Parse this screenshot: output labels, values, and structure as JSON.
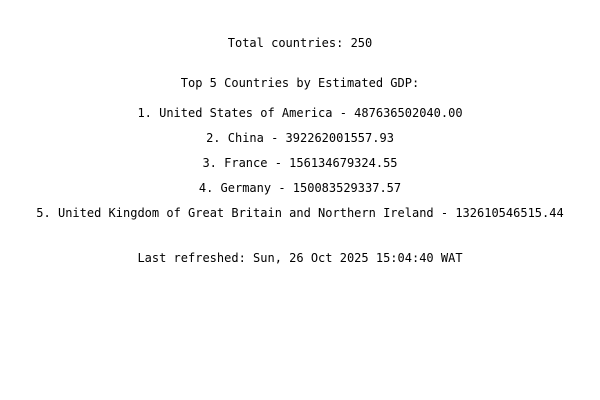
{
  "summary": {
    "total_countries": "Total countries: 250"
  },
  "ranking": {
    "heading": "Top 5 Countries by Estimated GDP:",
    "items": [
      {
        "text": "1. United States of America - 487636502040.00"
      },
      {
        "text": "2. China - 392262001557.93"
      },
      {
        "text": "3. France - 156134679324.55"
      },
      {
        "text": "4. Germany - 150083529337.57"
      },
      {
        "text": "5. United Kingdom of Great Britain and Northern Ireland - 132610546515.44"
      }
    ]
  },
  "footer": {
    "last_refreshed": "Last refreshed: Sun, 26 Oct 2025 15:04:40 WAT"
  }
}
